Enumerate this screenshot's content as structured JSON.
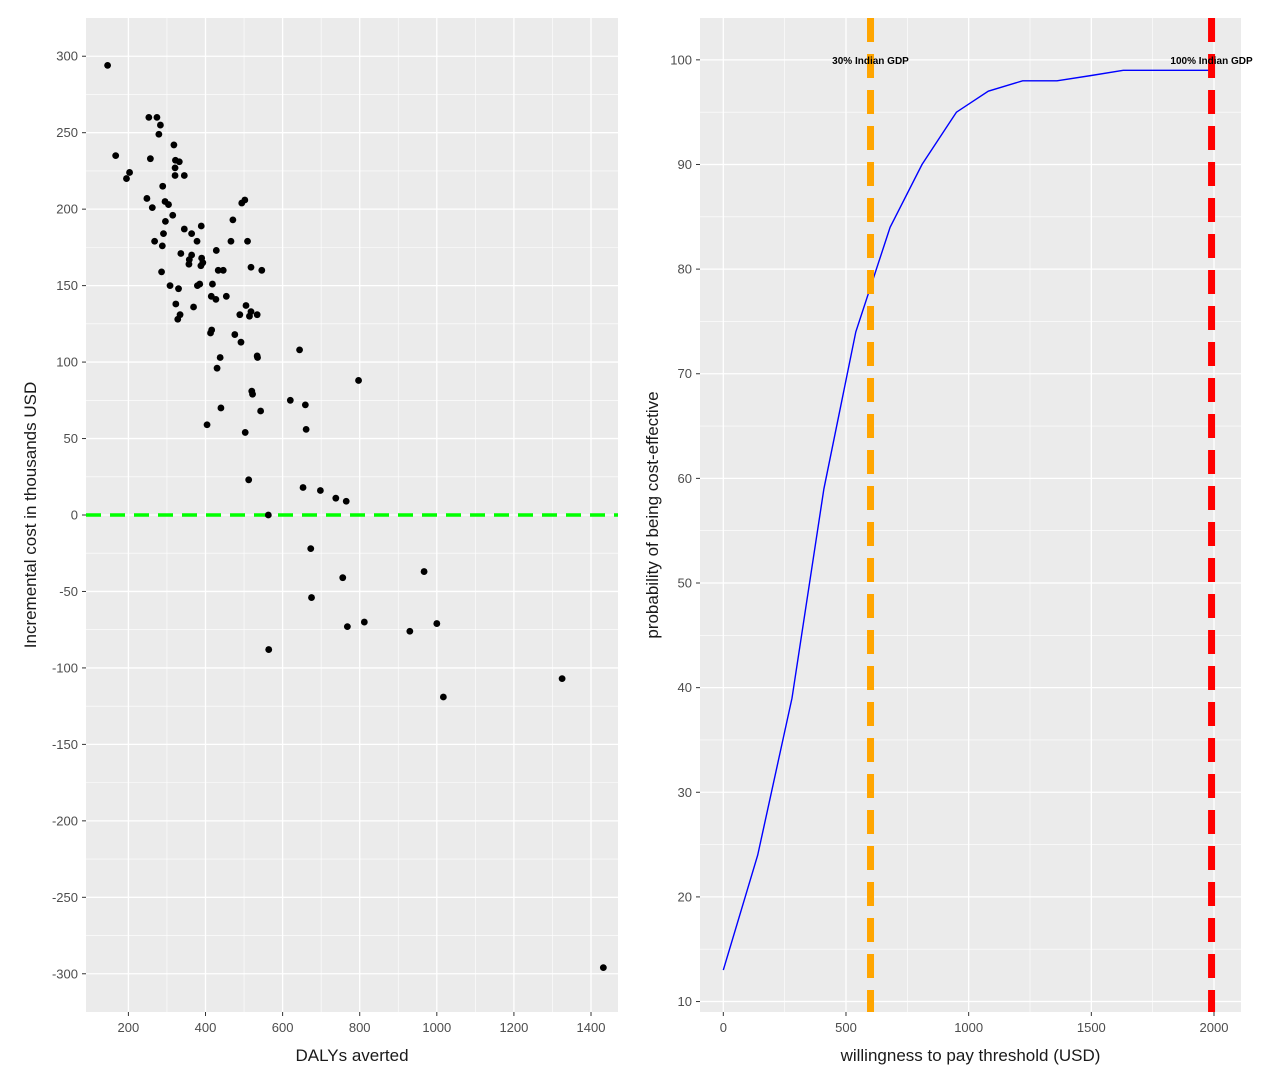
{
  "chart_data": [
    {
      "type": "scatter",
      "title": "",
      "xlabel": "DALYs averted",
      "ylabel": "Incremental cost in thousands USD",
      "xlim": [
        90,
        1470
      ],
      "ylim": [
        -325,
        325
      ],
      "xticks": [
        200,
        400,
        600,
        800,
        1000,
        1200,
        1400
      ],
      "yticks": [
        300,
        250,
        200,
        150,
        100,
        50,
        0,
        -50,
        -100,
        -150,
        -200,
        -250,
        -300
      ],
      "background": "#ebebeb",
      "grid": true,
      "hline": {
        "y": 0,
        "color": "#00ff00",
        "style": "dashed"
      },
      "point_color": "#000000",
      "points": [
        [
          146,
          294
        ],
        [
          167,
          235
        ],
        [
          195,
          220
        ],
        [
          203,
          224
        ],
        [
          248,
          207
        ],
        [
          253,
          260
        ],
        [
          257,
          233
        ],
        [
          262,
          201
        ],
        [
          268,
          179
        ],
        [
          274,
          260
        ],
        [
          279,
          249
        ],
        [
          283,
          255
        ],
        [
          286,
          159
        ],
        [
          288,
          176
        ],
        [
          289,
          215
        ],
        [
          291,
          184
        ],
        [
          295,
          205
        ],
        [
          296,
          192
        ],
        [
          304,
          203
        ],
        [
          308,
          150
        ],
        [
          315,
          196
        ],
        [
          318,
          242
        ],
        [
          321,
          222
        ],
        [
          321,
          227
        ],
        [
          322,
          232
        ],
        [
          323,
          138
        ],
        [
          328,
          128
        ],
        [
          330,
          148
        ],
        [
          332,
          231
        ],
        [
          334,
          131
        ],
        [
          336,
          171
        ],
        [
          345,
          222
        ],
        [
          345,
          187
        ],
        [
          357,
          164
        ],
        [
          358,
          167
        ],
        [
          364,
          184
        ],
        [
          364,
          170
        ],
        [
          369,
          136
        ],
        [
          378,
          179
        ],
        [
          379,
          150
        ],
        [
          385,
          151
        ],
        [
          388,
          163
        ],
        [
          389,
          189
        ],
        [
          390,
          168
        ],
        [
          393,
          165
        ],
        [
          404,
          59
        ],
        [
          413,
          119
        ],
        [
          415,
          143
        ],
        [
          416,
          121
        ],
        [
          418,
          151
        ],
        [
          427,
          141
        ],
        [
          428,
          173
        ],
        [
          430,
          96
        ],
        [
          433,
          160
        ],
        [
          438,
          103
        ],
        [
          440,
          70
        ],
        [
          446,
          160
        ],
        [
          454,
          143
        ],
        [
          466,
          179
        ],
        [
          471,
          193
        ],
        [
          476,
          118
        ],
        [
          489,
          131
        ],
        [
          492,
          113
        ],
        [
          494,
          204
        ],
        [
          502,
          206
        ],
        [
          503,
          54
        ],
        [
          505,
          137
        ],
        [
          509,
          179
        ],
        [
          512,
          23
        ],
        [
          514,
          130
        ],
        [
          518,
          162
        ],
        [
          518,
          133
        ],
        [
          520,
          81
        ],
        [
          522,
          79
        ],
        [
          534,
          131
        ],
        [
          534,
          104
        ],
        [
          535,
          103
        ],
        [
          543,
          68
        ],
        [
          546,
          160
        ],
        [
          563,
          0
        ],
        [
          564,
          -88
        ],
        [
          620,
          75
        ],
        [
          644,
          108
        ],
        [
          653,
          18
        ],
        [
          659,
          72
        ],
        [
          661,
          56
        ],
        [
          673,
          -22
        ],
        [
          675,
          -54
        ],
        [
          698,
          16
        ],
        [
          738,
          11
        ],
        [
          756,
          -41
        ],
        [
          765,
          9
        ],
        [
          768,
          -73
        ],
        [
          797,
          88
        ],
        [
          812,
          -70
        ],
        [
          930,
          -76
        ],
        [
          967,
          -37
        ],
        [
          1000,
          -71
        ],
        [
          1017,
          -119
        ],
        [
          1325,
          -107
        ],
        [
          1432,
          -296
        ]
      ]
    },
    {
      "type": "line",
      "title": "",
      "xlabel": "willingness to pay threshold (USD)",
      "ylabel": "probability of being cost-effective",
      "xlim": [
        -95,
        2110
      ],
      "ylim": [
        9,
        104
      ],
      "xticks": [
        0,
        500,
        1000,
        1500,
        2000
      ],
      "yticks": [
        100,
        90,
        80,
        70,
        60,
        50,
        40,
        30,
        20,
        10
      ],
      "background": "#ebebeb",
      "grid": true,
      "line_color": "#0000ff",
      "x": [
        0,
        140,
        280,
        410,
        540,
        680,
        810,
        950,
        1080,
        1220,
        1360,
        1500,
        1630,
        1770,
        1900,
        2000
      ],
      "y": [
        13,
        24,
        39,
        59,
        74,
        84,
        90,
        95,
        97,
        98,
        98,
        98.5,
        99,
        99,
        99,
        99
      ],
      "vlines": [
        {
          "x": 600,
          "color": "#ffa500",
          "style": "dashed",
          "label": "30% Indian GDP"
        },
        {
          "x": 1990,
          "color": "#ff0000",
          "style": "dashed",
          "label": "100% Indian GDP"
        }
      ]
    }
  ]
}
